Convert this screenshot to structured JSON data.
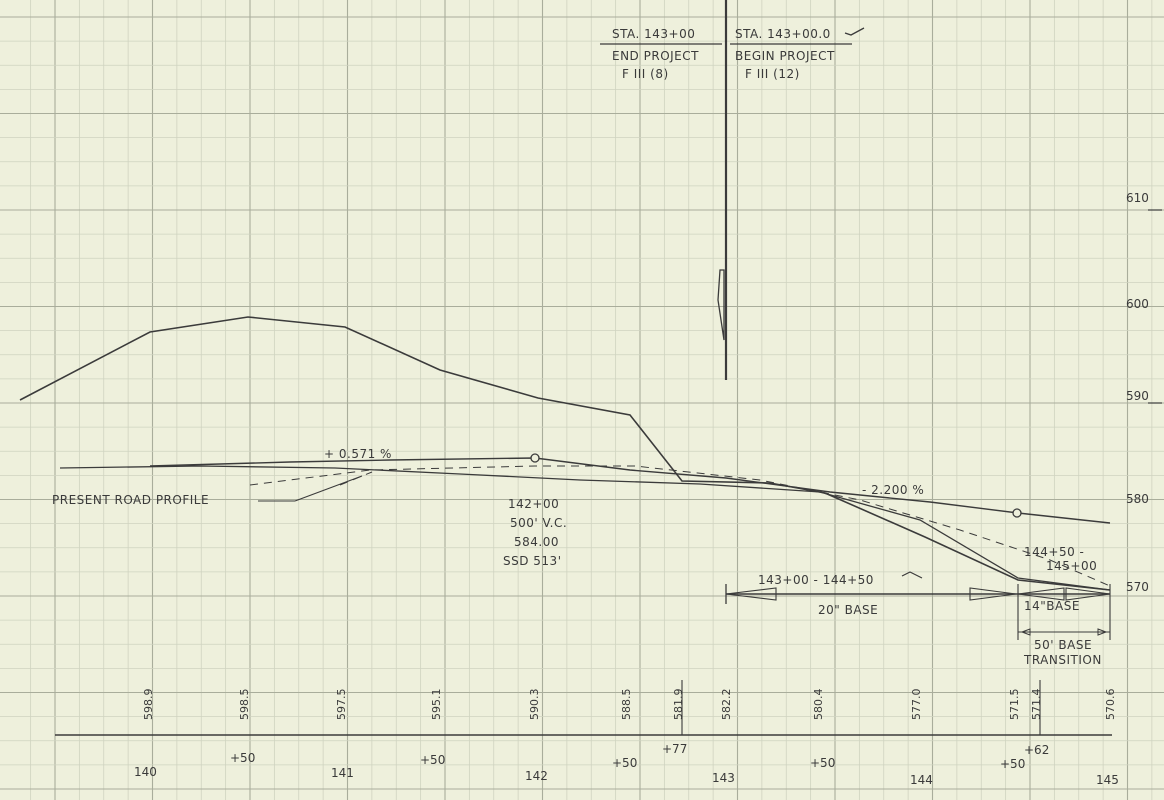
{
  "header": {
    "end_station": "STA. 143+00",
    "end_project": "END PROJECT",
    "end_ref": "F III (8)",
    "begin_station": "STA. 143+00.0",
    "begin_project": "BEGIN PROJECT",
    "begin_ref": "F III (12)"
  },
  "elevation_scale": [
    "610",
    "600",
    "590",
    "580",
    "570"
  ],
  "grades": {
    "left_grade": "+ 0.571 %",
    "right_grade": "- 2.200 %"
  },
  "present_road_label": "PRESENT ROAD PROFILE",
  "vertical_curve": {
    "station": "142+00",
    "length": "500' V.C.",
    "elevation": "584.00",
    "sight_distance": "SSD 513'"
  },
  "base_notes": {
    "range_a": "143+00 - 144+50",
    "base_a": "20\" BASE",
    "range_b_1": "144+50 -",
    "range_b_2": "145+00",
    "base_b": "14\"BASE",
    "transition_1": "50' BASE",
    "transition_2": "TRANSITION"
  },
  "grade_elevations": [
    "598.9",
    "598.5",
    "597.5",
    "595.1",
    "590.3",
    "588.5",
    "581.9",
    "582.2",
    "580.4",
    "577.0",
    "571.5",
    "571.4",
    "570.6"
  ],
  "stations": [
    "140",
    "+50",
    "141",
    "+50",
    "142",
    "+50",
    "+77",
    "143",
    "+50",
    "144",
    "+50",
    "+62",
    "145"
  ]
}
